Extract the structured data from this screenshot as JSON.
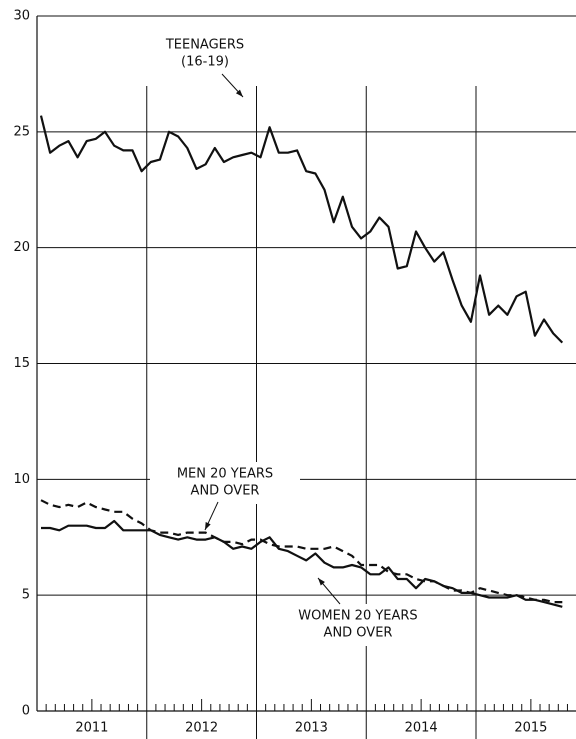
{
  "chart_data": {
    "type": "line",
    "years": [
      "2011",
      "2012",
      "2013",
      "2014",
      "2015"
    ],
    "ylim": [
      0,
      30
    ],
    "yticks": [
      0,
      5,
      10,
      15,
      20,
      25,
      30
    ],
    "grid": true,
    "series": [
      {
        "name": [
          "TEENAGERS",
          "(16-19)"
        ],
        "color": "#111111",
        "dash": false,
        "values": [
          25.7,
          24.1,
          24.4,
          24.6,
          23.9,
          24.6,
          24.7,
          25.0,
          24.4,
          24.2,
          24.2,
          23.3,
          23.7,
          23.8,
          25.0,
          24.8,
          24.3,
          23.4,
          23.6,
          24.3,
          23.7,
          23.9,
          24.0,
          24.1,
          23.9,
          25.2,
          24.1,
          24.1,
          24.2,
          23.3,
          23.2,
          22.5,
          21.1,
          22.2,
          20.9,
          20.4,
          20.7,
          21.3,
          20.9,
          19.1,
          19.2,
          20.7,
          20.0,
          19.4,
          19.8,
          18.6,
          17.5,
          16.8,
          18.8,
          17.1,
          17.5,
          17.1,
          17.9,
          18.1,
          16.2,
          16.9,
          16.3,
          15.9
        ]
      },
      {
        "name": [
          "MEN 20 YEARS",
          "AND OVER"
        ],
        "color": "#111111",
        "dash": true,
        "values": [
          9.1,
          8.9,
          8.8,
          8.9,
          8.8,
          9.0,
          8.8,
          8.7,
          8.6,
          8.6,
          8.3,
          8.1,
          7.8,
          7.7,
          7.7,
          7.6,
          7.7,
          7.7,
          7.7,
          7.5,
          7.3,
          7.3,
          7.2,
          7.4,
          7.4,
          7.2,
          7.1,
          7.1,
          7.1,
          7.0,
          7.0,
          7.0,
          7.1,
          6.9,
          6.7,
          6.3,
          6.3,
          6.3,
          6.0,
          5.9,
          5.9,
          5.7,
          5.6,
          5.6,
          5.4,
          5.2,
          5.2,
          5.1,
          5.3,
          5.2,
          5.1,
          5.0,
          5.0,
          4.9,
          4.8,
          4.8,
          4.7,
          4.7
        ]
      },
      {
        "name": [
          "WOMEN 20 YEARS",
          "AND OVER"
        ],
        "color": "#111111",
        "dash": false,
        "values": [
          7.9,
          7.9,
          7.8,
          8.0,
          8.0,
          8.0,
          7.9,
          7.9,
          8.2,
          7.8,
          7.8,
          7.8,
          7.8,
          7.6,
          7.5,
          7.4,
          7.5,
          7.4,
          7.4,
          7.5,
          7.3,
          7.0,
          7.1,
          7.0,
          7.3,
          7.5,
          7.0,
          6.9,
          6.7,
          6.5,
          6.8,
          6.4,
          6.2,
          6.2,
          6.3,
          6.2,
          5.9,
          5.9,
          6.2,
          5.7,
          5.7,
          5.3,
          5.7,
          5.6,
          5.4,
          5.3,
          5.1,
          5.1,
          5.0,
          4.9,
          4.9,
          4.9,
          5.0,
          4.8,
          4.8,
          4.7,
          4.6,
          4.5
        ]
      }
    ]
  }
}
